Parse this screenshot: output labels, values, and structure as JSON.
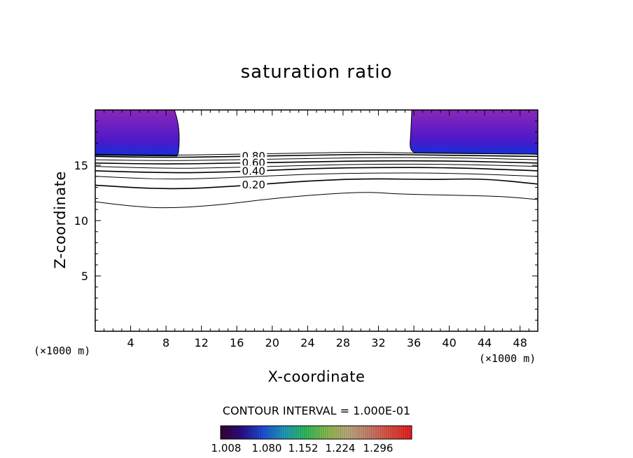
{
  "chart_data": {
    "type": "contour",
    "title": "saturation ratio",
    "xlabel": "X-coordinate",
    "ylabel": "Z-coordinate",
    "x_unit": "(×1000 m)",
    "z_unit": "(×1000 m)",
    "xlim": [
      0,
      50
    ],
    "ylim": [
      0,
      20
    ],
    "x_ticks": [
      4,
      8,
      12,
      16,
      20,
      24,
      28,
      32,
      36,
      40,
      44,
      48
    ],
    "y_ticks": [
      5,
      10,
      15
    ],
    "contour_interval_text": "CONTOUR INTERVAL = 1.000E-01",
    "contour_labels": [
      "0.80",
      "0.60",
      "0.40",
      "0.20"
    ],
    "contour_lines": [
      {
        "level": 0.1,
        "points": [
          [
            0,
            11.7
          ],
          [
            4,
            11.3
          ],
          [
            8,
            11.1
          ],
          [
            14,
            11.4
          ],
          [
            20,
            12.0
          ],
          [
            26,
            12.4
          ],
          [
            31,
            12.6
          ],
          [
            34,
            12.4
          ],
          [
            40,
            12.3
          ],
          [
            46,
            12.2
          ],
          [
            50,
            11.9
          ]
        ]
      },
      {
        "level": 0.2,
        "points": [
          [
            0,
            13.2
          ],
          [
            8,
            12.8
          ],
          [
            16,
            13.1
          ],
          [
            24,
            13.6
          ],
          [
            31,
            13.8
          ],
          [
            38,
            13.7
          ],
          [
            44,
            13.8
          ],
          [
            50,
            13.3
          ]
        ]
      },
      {
        "level": 0.3,
        "points": [
          [
            0,
            14.0
          ],
          [
            8,
            13.7
          ],
          [
            16,
            13.9
          ],
          [
            24,
            14.2
          ],
          [
            31,
            14.3
          ],
          [
            40,
            14.3
          ],
          [
            50,
            14.0
          ]
        ]
      },
      {
        "level": 0.4,
        "points": [
          [
            0,
            14.5
          ],
          [
            8,
            14.3
          ],
          [
            16,
            14.4
          ],
          [
            24,
            14.7
          ],
          [
            31,
            14.8
          ],
          [
            40,
            14.8
          ],
          [
            50,
            14.5
          ]
        ]
      },
      {
        "level": 0.5,
        "points": [
          [
            0,
            14.9
          ],
          [
            8,
            14.7
          ],
          [
            16,
            14.8
          ],
          [
            24,
            15.0
          ],
          [
            31,
            15.1
          ],
          [
            40,
            15.1
          ],
          [
            50,
            14.9
          ]
        ]
      },
      {
        "level": 0.6,
        "points": [
          [
            0,
            15.2
          ],
          [
            8,
            15.1
          ],
          [
            16,
            15.2
          ],
          [
            24,
            15.3
          ],
          [
            31,
            15.4
          ],
          [
            40,
            15.4
          ],
          [
            50,
            15.2
          ]
        ]
      },
      {
        "level": 0.7,
        "points": [
          [
            0,
            15.5
          ],
          [
            8,
            15.4
          ],
          [
            16,
            15.5
          ],
          [
            24,
            15.6
          ],
          [
            31,
            15.7
          ],
          [
            40,
            15.7
          ],
          [
            50,
            15.5
          ]
        ]
      },
      {
        "level": 0.8,
        "points": [
          [
            0,
            15.8
          ],
          [
            8,
            15.7
          ],
          [
            16,
            15.8
          ],
          [
            24,
            15.9
          ],
          [
            31,
            16.0
          ],
          [
            40,
            15.9
          ],
          [
            50,
            15.8
          ]
        ]
      },
      {
        "level": 0.9,
        "points": [
          [
            0,
            16.0
          ],
          [
            8,
            15.9
          ],
          [
            16,
            16.0
          ],
          [
            24,
            16.1
          ],
          [
            30,
            16.2
          ],
          [
            36,
            16.1
          ],
          [
            50,
            16.0
          ]
        ]
      }
    ],
    "shaded_regions": [
      {
        "name": "left",
        "x_range": [
          0,
          9.4
        ],
        "z_range": [
          15.9,
          20
        ]
      },
      {
        "name": "right",
        "x_range": [
          35.6,
          50
        ],
        "z_range": [
          16.0,
          20
        ]
      }
    ],
    "colorbar": {
      "ticks": [
        "1.008",
        "1.080",
        "1.152",
        "1.224",
        "1.296"
      ],
      "colors": [
        "#3a0030",
        "#2a0f8a",
        "#2050e0",
        "#20a0c0",
        "#30c060",
        "#90c050",
        "#c0b080",
        "#d08070",
        "#e05040",
        "#f02020"
      ]
    },
    "shading_colors": {
      "deep": "#1430d8",
      "mid": "#5018c8",
      "top": "#8a28b8"
    }
  }
}
